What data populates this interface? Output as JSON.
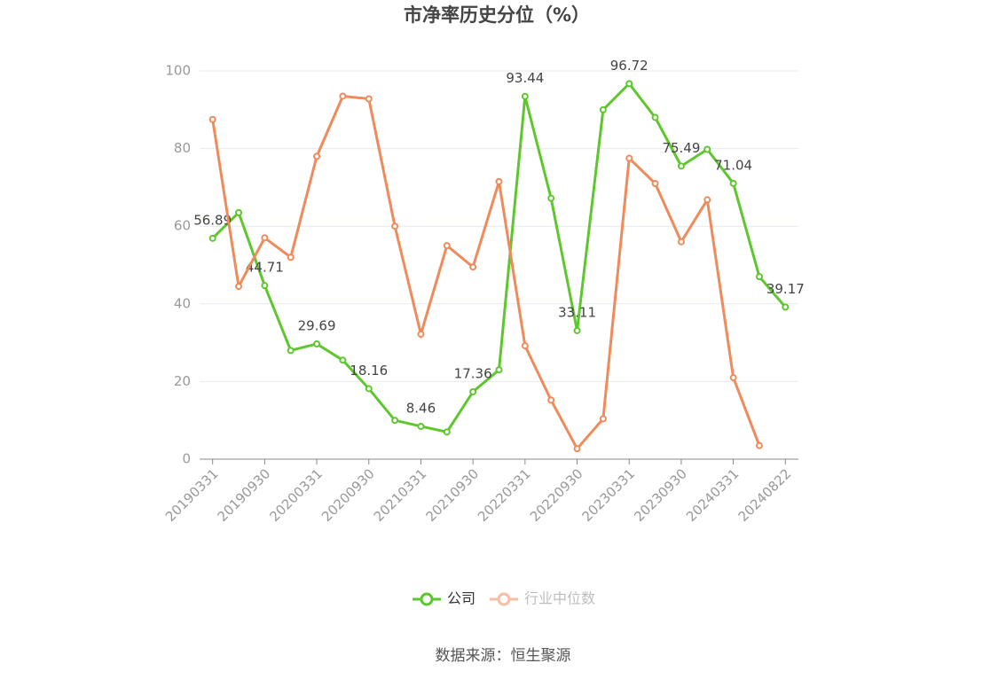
{
  "chart_data": {
    "type": "line",
    "title": "市净率历史分位（%）",
    "source": "数据来源：恒生聚源",
    "categories": [
      "20190331",
      null,
      "20190930",
      null,
      "20200331",
      null,
      "20200930",
      null,
      "20210331",
      null,
      "20210930",
      null,
      "20220331",
      null,
      "20220930",
      null,
      "20230331",
      null,
      "20230930",
      null,
      "20240331",
      null,
      "20240822"
    ],
    "series": [
      {
        "name": "公司",
        "color": "#5ec72d",
        "values": [
          56.89,
          63.5,
          44.71,
          28,
          29.69,
          25.5,
          18.16,
          10,
          8.46,
          7,
          17.36,
          23,
          93.44,
          67.2,
          33.11,
          90,
          96.72,
          88,
          75.49,
          79.8,
          71.04,
          47,
          39.17
        ]
      },
      {
        "name": "行业中位数",
        "color": "#f08a5a",
        "values": [
          87.5,
          44.5,
          57,
          52,
          78,
          93.5,
          92.8,
          60,
          32.2,
          55,
          49.5,
          71.5,
          29.2,
          15.2,
          2.7,
          10.4,
          77.5,
          71,
          56,
          66.8,
          21,
          3.5,
          null
        ]
      }
    ],
    "ylim": [
      0,
      100
    ],
    "yticks": [
      0,
      20,
      40,
      60,
      80,
      100
    ],
    "grid": true
  }
}
